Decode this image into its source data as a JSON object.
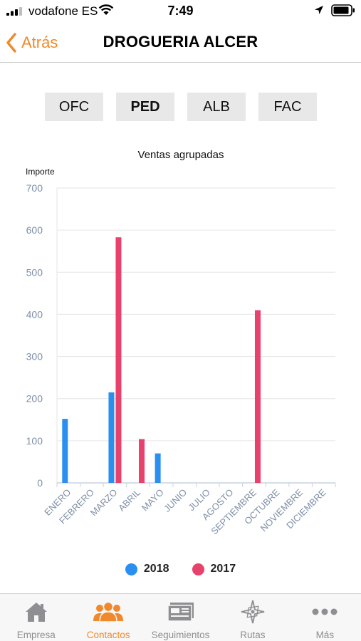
{
  "status_bar": {
    "carrier": "vodafone ES",
    "time": "7:49"
  },
  "nav": {
    "back_label": "Atrás",
    "title": "DROGUERIA ALCER"
  },
  "segments": [
    {
      "label": "OFC",
      "active": false
    },
    {
      "label": "PED",
      "active": true
    },
    {
      "label": "ALB",
      "active": false
    },
    {
      "label": "FAC",
      "active": false
    }
  ],
  "chart_data": {
    "type": "bar",
    "title": "Ventas agrupadas",
    "ylabel": "Importe",
    "xlabel": "",
    "ylim": [
      0,
      700
    ],
    "yticks": [
      0,
      100,
      200,
      300,
      400,
      500,
      600,
      700
    ],
    "grid": true,
    "legend_position": "bottom",
    "categories": [
      "ENERO",
      "FEBRERO",
      "MARZO",
      "ABRIL",
      "MAYO",
      "JUNIO",
      "JULIO",
      "AGOSTO",
      "SEPTIEMBRE",
      "OCTUBRE",
      "NOVIEMBRE",
      "DICIEMBRE"
    ],
    "series": [
      {
        "name": "2018",
        "color": "#2b8ff0",
        "values": [
          152,
          0,
          215,
          0,
          70,
          0,
          0,
          0,
          0,
          0,
          0,
          0
        ]
      },
      {
        "name": "2017",
        "color": "#e8416b",
        "values": [
          0,
          0,
          583,
          104,
          0,
          0,
          0,
          0,
          410,
          0,
          0,
          0
        ]
      }
    ]
  },
  "tabs": [
    {
      "label": "Empresa",
      "icon": "home-icon",
      "active": false
    },
    {
      "label": "Contactos",
      "icon": "contacts-icon",
      "active": true
    },
    {
      "label": "Seguimientos",
      "icon": "tracking-icon",
      "active": false
    },
    {
      "label": "Rutas",
      "icon": "compass-icon",
      "active": false
    },
    {
      "label": "Más",
      "icon": "more-icon",
      "active": false
    }
  ],
  "colors": {
    "accent": "#f0892b",
    "series_2018": "#2b8ff0",
    "series_2017": "#e8416b"
  }
}
